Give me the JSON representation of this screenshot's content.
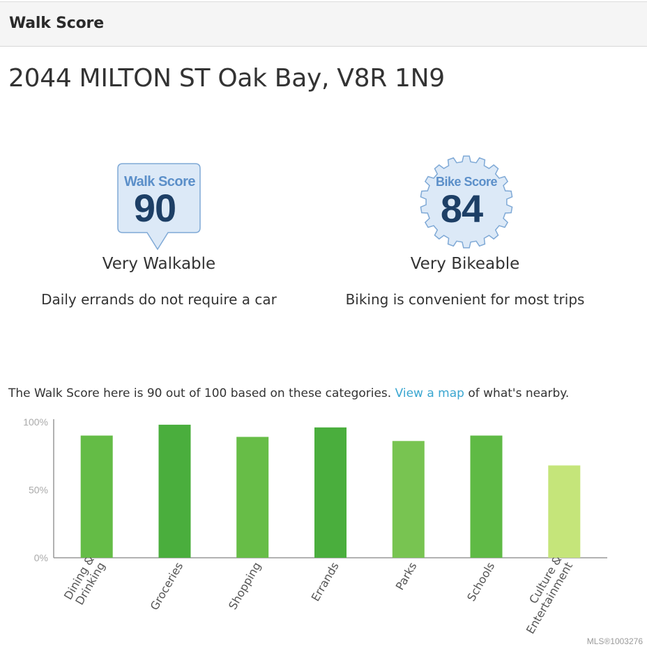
{
  "header": {
    "title": "Walk Score"
  },
  "address": "2044 MILTON ST Oak Bay, V8R 1N9",
  "walk": {
    "badge_label": "Walk Score",
    "score": "90",
    "rating": "Very Walkable",
    "description": "Daily errands do not require a car"
  },
  "bike": {
    "badge_label": "Bike Score",
    "score": "84",
    "rating": "Very Bikeable",
    "description": "Biking is convenient for most trips"
  },
  "summary": {
    "before": "The Walk Score here is 90 out of 100 based on these categories. ",
    "link": "View a map",
    "after": " of what's nearby."
  },
  "colors": {
    "badge_fill": "#dce9f7",
    "badge_stroke": "#7fa9d6",
    "badge_label": "#5b8fc9",
    "badge_score": "#1d3f66",
    "link": "#3aa6d0"
  },
  "chart_data": {
    "type": "bar",
    "categories": [
      [
        "Dining &",
        "Drinking"
      ],
      [
        "Groceries"
      ],
      [
        "Shopping"
      ],
      [
        "Errands"
      ],
      [
        "Parks"
      ],
      [
        "Schools"
      ],
      [
        "Culture &",
        "Entertainment"
      ]
    ],
    "values": [
      90,
      98,
      89,
      96,
      86,
      90,
      68
    ],
    "colors": [
      "#64bc46",
      "#4aae3d",
      "#67bd47",
      "#4aae3d",
      "#78c451",
      "#5fba45",
      "#c5e57a"
    ],
    "ylim": [
      0,
      100
    ],
    "yticks": [
      "0%",
      "50%",
      "100%"
    ],
    "ytick_values": [
      0,
      50,
      100
    ]
  },
  "footer": {
    "mls": "MLS®1003276"
  }
}
